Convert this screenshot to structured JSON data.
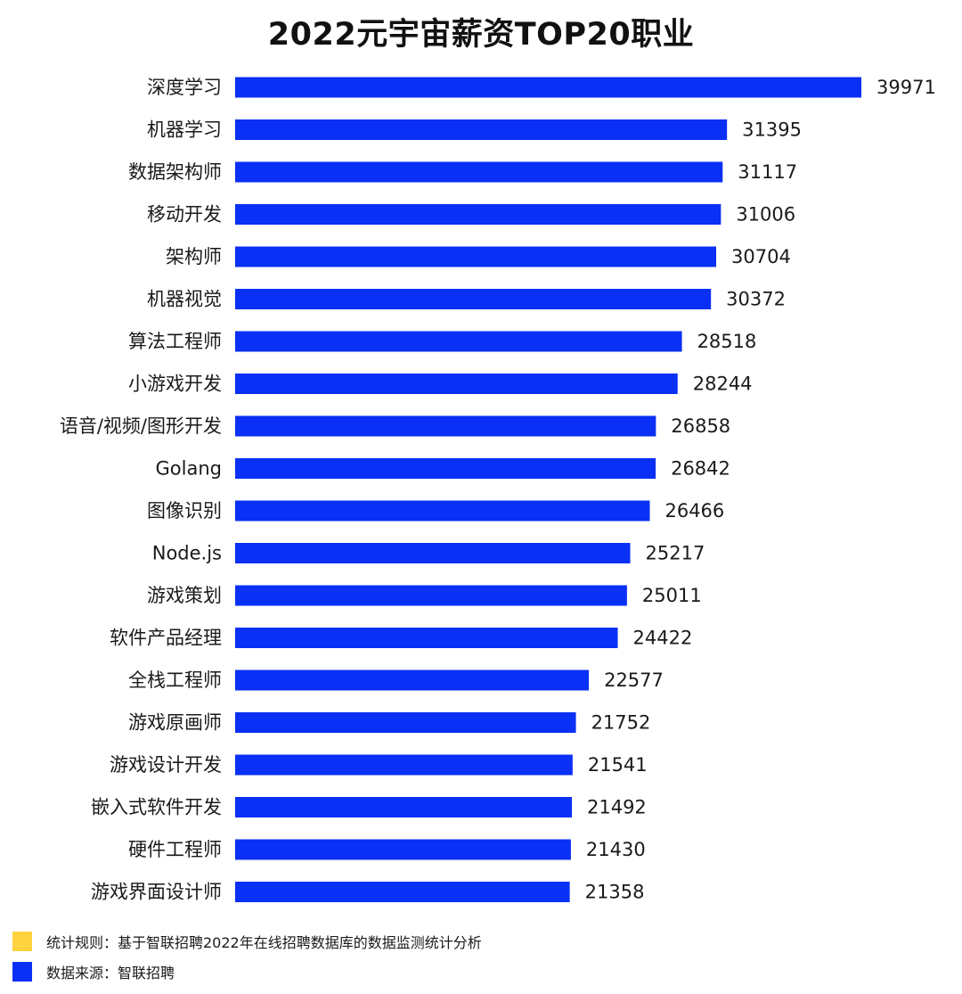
{
  "title": "2022元宇宙薪资TOP20职业",
  "chart_data": {
    "type": "bar",
    "orientation": "horizontal",
    "title": "2022元宇宙薪资TOP20职业",
    "categories": [
      "深度学习",
      "机器学习",
      "数据架构师",
      "移动开发",
      "架构师",
      "机器视觉",
      "算法工程师",
      "小游戏开发",
      "语音/视频/图形开发",
      "Golang",
      "图像识别",
      "Node.js",
      "游戏策划",
      "软件产品经理",
      "全栈工程师",
      "游戏原画师",
      "游戏设计开发",
      "嵌入式软件开发",
      "硬件工程师",
      "游戏界面设计师"
    ],
    "values": [
      39971,
      31395,
      31117,
      31006,
      30704,
      30372,
      28518,
      28244,
      26858,
      26842,
      26466,
      25217,
      25011,
      24422,
      22577,
      21752,
      21541,
      21492,
      21430,
      21358
    ],
    "value_labels": [
      "39971",
      "31395",
      "31117",
      "31006",
      "30704",
      "30372",
      "28518",
      "28244",
      "26858",
      "26842",
      "26466",
      "25217",
      "25011",
      "24422",
      "22577",
      "21752",
      "21541",
      "21492",
      "21430",
      "21358"
    ],
    "bar_color": "#0a2ff5",
    "grid": false,
    "xlim": [
      0,
      39971
    ]
  },
  "footnotes": [
    {
      "text": "统计规则：基于智联招聘2022年在线招聘数据库的数据监测统计分析",
      "color": "#ffd23f"
    },
    {
      "text": "数据来源：智联招聘",
      "color": "#0a2ff5"
    }
  ]
}
